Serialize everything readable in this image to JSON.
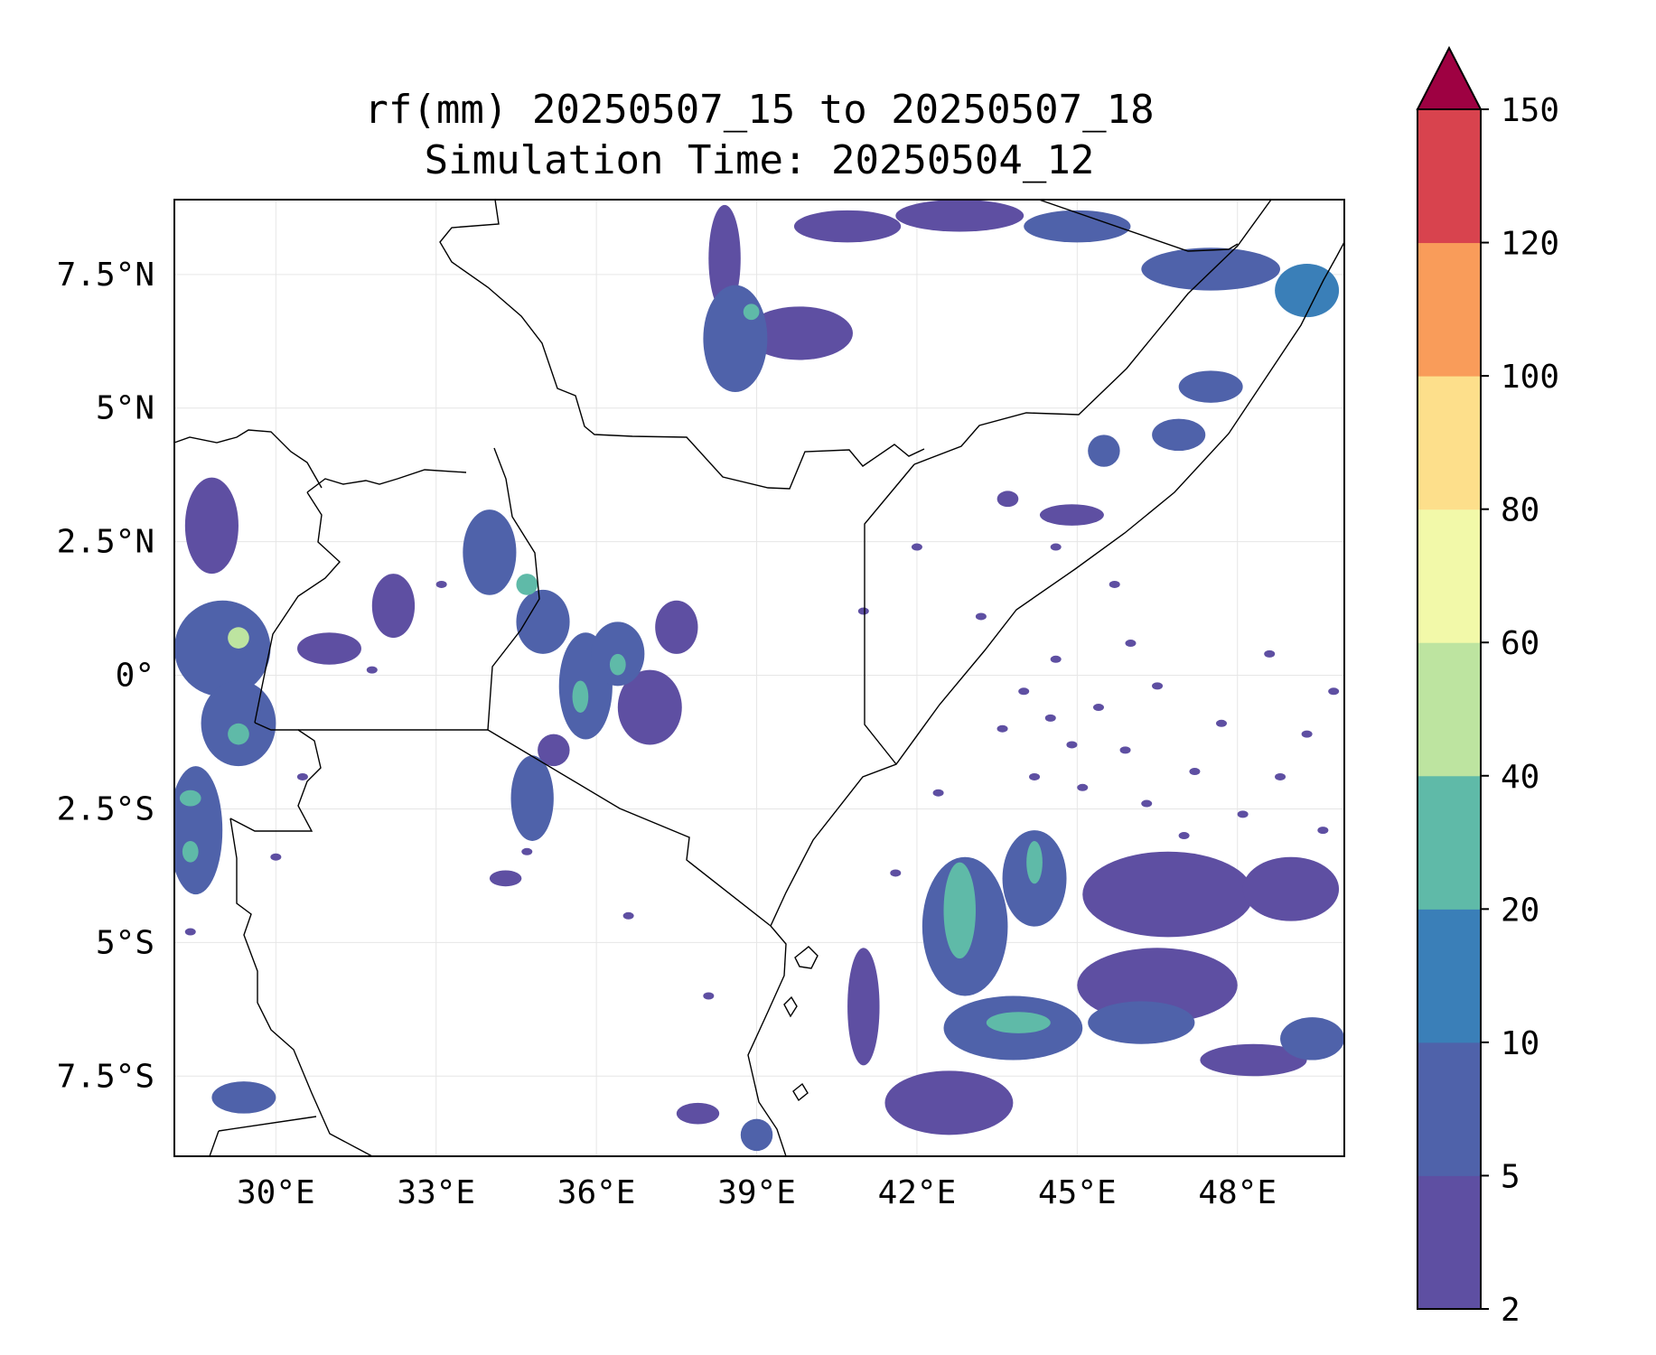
{
  "title": {
    "line1": "rf(mm) 20250507_15 to 20250507_18",
    "line2": "Simulation Time: 20250504_12"
  },
  "map": {
    "lon_range": [
      28.1,
      50.0
    ],
    "lat_range": [
      -9.0,
      8.9
    ],
    "x_ticks": [
      {
        "value": 30,
        "label": "30°E"
      },
      {
        "value": 33,
        "label": "33°E"
      },
      {
        "value": 36,
        "label": "36°E"
      },
      {
        "value": 39,
        "label": "39°E"
      },
      {
        "value": 42,
        "label": "42°E"
      },
      {
        "value": 45,
        "label": "45°E"
      },
      {
        "value": 48,
        "label": "48°E"
      }
    ],
    "y_ticks": [
      {
        "value": 7.5,
        "label": "7.5°N"
      },
      {
        "value": 5,
        "label": "5°N"
      },
      {
        "value": 2.5,
        "label": "2.5°N"
      },
      {
        "value": 0,
        "label": "0°"
      },
      {
        "value": -2.5,
        "label": "2.5°S"
      },
      {
        "value": -5,
        "label": "5°S"
      },
      {
        "value": -7.5,
        "label": "7.5°S"
      }
    ],
    "gridlines": true,
    "boundary_color": "#000000"
  },
  "colorbar": {
    "placement": "right",
    "extend": "max",
    "extend_color": "#9e0142",
    "levels": [
      2,
      5,
      10,
      20,
      40,
      60,
      80,
      100,
      120,
      150
    ],
    "tick_labels": [
      "2",
      "5",
      "10",
      "20",
      "40",
      "60",
      "80",
      "100",
      "120",
      "150"
    ],
    "colors": [
      "#5e4fa2",
      "#4f62aa",
      "#3a7fb8",
      "#5fbaa8",
      "#bde4a0",
      "#f2f9a9",
      "#fddf8b",
      "#f99c5a",
      "#d8434e"
    ]
  },
  "rain_cells": [
    {
      "lon": 28.8,
      "lat": 2.8,
      "rx": 0.5,
      "ry": 0.9,
      "level": 0
    },
    {
      "lon": 29.0,
      "lat": 0.5,
      "rx": 0.9,
      "ry": 0.9,
      "level": 1
    },
    {
      "lon": 29.3,
      "lat": 0.7,
      "rx": 0.2,
      "ry": 0.2,
      "level": 4
    },
    {
      "lon": 29.3,
      "lat": -0.9,
      "rx": 0.7,
      "ry": 0.8,
      "level": 1
    },
    {
      "lon": 29.3,
      "lat": -1.1,
      "rx": 0.2,
      "ry": 0.2,
      "level": 3
    },
    {
      "lon": 28.5,
      "lat": -2.9,
      "rx": 0.5,
      "ry": 1.2,
      "level": 1
    },
    {
      "lon": 28.4,
      "lat": -2.3,
      "rx": 0.2,
      "ry": 0.15,
      "level": 3
    },
    {
      "lon": 28.4,
      "lat": -3.3,
      "rx": 0.15,
      "ry": 0.2,
      "level": 3
    },
    {
      "lon": 29.4,
      "lat": -7.9,
      "rx": 0.6,
      "ry": 0.3,
      "level": 1
    },
    {
      "lon": 31.0,
      "lat": 0.5,
      "rx": 0.6,
      "ry": 0.3,
      "level": 0
    },
    {
      "lon": 32.2,
      "lat": 1.3,
      "rx": 0.4,
      "ry": 0.6,
      "level": 0
    },
    {
      "lon": 34.0,
      "lat": 2.3,
      "rx": 0.5,
      "ry": 0.8,
      "level": 1
    },
    {
      "lon": 34.7,
      "lat": 1.7,
      "rx": 0.2,
      "ry": 0.2,
      "level": 3
    },
    {
      "lon": 35.0,
      "lat": 1.0,
      "rx": 0.5,
      "ry": 0.6,
      "level": 1
    },
    {
      "lon": 35.8,
      "lat": -0.2,
      "rx": 0.5,
      "ry": 1.0,
      "level": 1
    },
    {
      "lon": 35.7,
      "lat": -0.4,
      "rx": 0.15,
      "ry": 0.3,
      "level": 3
    },
    {
      "lon": 36.4,
      "lat": 0.4,
      "rx": 0.5,
      "ry": 0.6,
      "level": 1
    },
    {
      "lon": 36.4,
      "lat": 0.2,
      "rx": 0.15,
      "ry": 0.2,
      "level": 3
    },
    {
      "lon": 37.0,
      "lat": -0.6,
      "rx": 0.6,
      "ry": 0.7,
      "level": 0
    },
    {
      "lon": 37.5,
      "lat": 0.9,
      "rx": 0.4,
      "ry": 0.5,
      "level": 0
    },
    {
      "lon": 34.8,
      "lat": -2.3,
      "rx": 0.4,
      "ry": 0.8,
      "level": 1
    },
    {
      "lon": 35.2,
      "lat": -1.4,
      "rx": 0.3,
      "ry": 0.3,
      "level": 0
    },
    {
      "lon": 34.3,
      "lat": -3.8,
      "rx": 0.3,
      "ry": 0.15,
      "level": 0
    },
    {
      "lon": 38.4,
      "lat": 7.8,
      "rx": 0.3,
      "ry": 1.0,
      "level": 0
    },
    {
      "lon": 38.6,
      "lat": 6.3,
      "rx": 0.6,
      "ry": 1.0,
      "level": 1
    },
    {
      "lon": 38.9,
      "lat": 6.8,
      "rx": 0.15,
      "ry": 0.15,
      "level": 3
    },
    {
      "lon": 39.8,
      "lat": 6.4,
      "rx": 1.0,
      "ry": 0.5,
      "level": 0
    },
    {
      "lon": 40.7,
      "lat": 8.4,
      "rx": 1.0,
      "ry": 0.3,
      "level": 0
    },
    {
      "lon": 42.8,
      "lat": 8.6,
      "rx": 1.2,
      "ry": 0.3,
      "level": 0
    },
    {
      "lon": 45.0,
      "lat": 8.4,
      "rx": 1.0,
      "ry": 0.3,
      "level": 1
    },
    {
      "lon": 47.5,
      "lat": 7.6,
      "rx": 1.3,
      "ry": 0.4,
      "level": 1
    },
    {
      "lon": 49.3,
      "lat": 7.2,
      "rx": 0.6,
      "ry": 0.5,
      "level": 2
    },
    {
      "lon": 47.5,
      "lat": 5.4,
      "rx": 0.6,
      "ry": 0.3,
      "level": 1
    },
    {
      "lon": 46.9,
      "lat": 4.5,
      "rx": 0.5,
      "ry": 0.3,
      "level": 1
    },
    {
      "lon": 45.5,
      "lat": 4.2,
      "rx": 0.3,
      "ry": 0.3,
      "level": 1
    },
    {
      "lon": 44.9,
      "lat": 3.0,
      "rx": 0.6,
      "ry": 0.2,
      "level": 0
    },
    {
      "lon": 43.7,
      "lat": 3.3,
      "rx": 0.2,
      "ry": 0.15,
      "level": 0
    },
    {
      "lon": 42.9,
      "lat": -4.7,
      "rx": 0.8,
      "ry": 1.3,
      "level": 1
    },
    {
      "lon": 42.8,
      "lat": -4.4,
      "rx": 0.3,
      "ry": 0.9,
      "level": 3
    },
    {
      "lon": 43.8,
      "lat": -6.6,
      "rx": 1.3,
      "ry": 0.6,
      "level": 1
    },
    {
      "lon": 43.9,
      "lat": -6.5,
      "rx": 0.6,
      "ry": 0.2,
      "level": 3
    },
    {
      "lon": 44.2,
      "lat": -3.8,
      "rx": 0.6,
      "ry": 0.9,
      "level": 1
    },
    {
      "lon": 44.2,
      "lat": -3.5,
      "rx": 0.15,
      "ry": 0.4,
      "level": 3
    },
    {
      "lon": 42.6,
      "lat": -8.0,
      "rx": 1.2,
      "ry": 0.6,
      "level": 0
    },
    {
      "lon": 41.0,
      "lat": -6.2,
      "rx": 0.3,
      "ry": 1.1,
      "level": 0
    },
    {
      "lon": 46.7,
      "lat": -4.1,
      "rx": 1.6,
      "ry": 0.8,
      "level": 0
    },
    {
      "lon": 46.5,
      "lat": -5.8,
      "rx": 1.5,
      "ry": 0.7,
      "level": 0
    },
    {
      "lon": 46.2,
      "lat": -6.5,
      "rx": 1.0,
      "ry": 0.4,
      "level": 1
    },
    {
      "lon": 49.0,
      "lat": -4.0,
      "rx": 0.9,
      "ry": 0.6,
      "level": 0
    },
    {
      "lon": 49.4,
      "lat": -6.8,
      "rx": 0.6,
      "ry": 0.4,
      "level": 1
    },
    {
      "lon": 48.3,
      "lat": -7.2,
      "rx": 1.0,
      "ry": 0.3,
      "level": 0
    },
    {
      "lon": 39.0,
      "lat": -8.6,
      "rx": 0.3,
      "ry": 0.3,
      "level": 1
    },
    {
      "lon": 37.9,
      "lat": -8.2,
      "rx": 0.4,
      "ry": 0.2,
      "level": 0
    }
  ],
  "rain_specks": [
    [
      44.0,
      -0.3
    ],
    [
      44.5,
      -0.8
    ],
    [
      44.9,
      -1.3
    ],
    [
      45.4,
      -0.6
    ],
    [
      45.9,
      -1.4
    ],
    [
      46.5,
      -0.2
    ],
    [
      44.2,
      -1.9
    ],
    [
      45.1,
      -2.1
    ],
    [
      46.3,
      -2.4
    ],
    [
      47.2,
      -1.8
    ],
    [
      48.1,
      -2.6
    ],
    [
      48.8,
      -1.9
    ],
    [
      47.7,
      -0.9
    ],
    [
      49.3,
      -1.1
    ],
    [
      49.6,
      -2.9
    ],
    [
      44.6,
      0.3
    ],
    [
      43.6,
      -1.0
    ],
    [
      47.0,
      -3.0
    ],
    [
      42.4,
      -2.2
    ],
    [
      41.6,
      -3.7
    ],
    [
      46.0,
      0.6
    ],
    [
      48.6,
      0.4
    ],
    [
      49.8,
      -0.3
    ],
    [
      45.7,
      1.7
    ],
    [
      43.2,
      1.1
    ],
    [
      42.0,
      2.4
    ],
    [
      41.0,
      1.2
    ],
    [
      44.6,
      2.4
    ],
    [
      38.1,
      -6.0
    ],
    [
      36.6,
      -4.5
    ],
    [
      34.7,
      -3.3
    ],
    [
      33.1,
      1.7
    ],
    [
      31.8,
      0.1
    ],
    [
      30.5,
      -1.9
    ],
    [
      30.0,
      -3.4
    ],
    [
      28.4,
      -4.8
    ]
  ]
}
